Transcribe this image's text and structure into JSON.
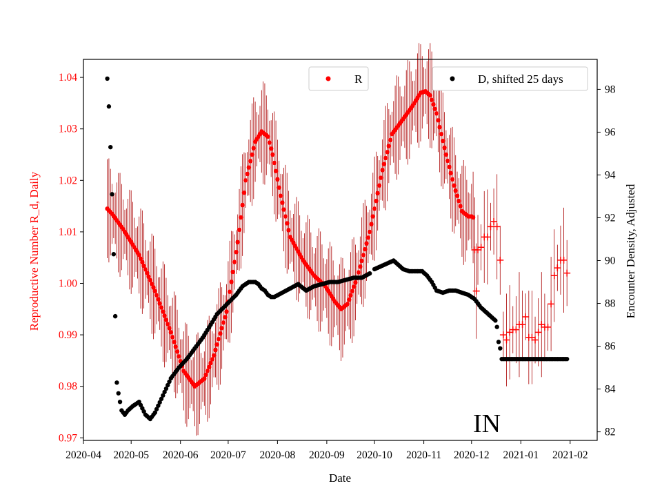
{
  "chart_data": {
    "type": "scatter",
    "title": "",
    "xlabel": "Date",
    "ylabel_left": "Reproductive Number R_d, Daily",
    "ylabel_right": "Encounter Density, Adjusted",
    "annotation": "IN",
    "x_start_date": "2020-04-01",
    "xlim_days": [
      0,
      323
    ],
    "ylim_left": [
      0.9695,
      1.0435
    ],
    "ylim_right": [
      81.6,
      99.4
    ],
    "x_ticks": [
      {
        "day": 0,
        "label": "2020-04"
      },
      {
        "day": 30,
        "label": "2020-05"
      },
      {
        "day": 61,
        "label": "2020-06"
      },
      {
        "day": 91,
        "label": "2020-07"
      },
      {
        "day": 122,
        "label": "2020-08"
      },
      {
        "day": 153,
        "label": "2020-09"
      },
      {
        "day": 183,
        "label": "2020-10"
      },
      {
        "day": 214,
        "label": "2020-11"
      },
      {
        "day": 244,
        "label": "2020-12"
      },
      {
        "day": 275,
        "label": "2021-01"
      },
      {
        "day": 306,
        "label": "2021-02"
      }
    ],
    "y_ticks_left": [
      {
        "value": 0.97,
        "label": "0.97"
      },
      {
        "value": 0.98,
        "label": "0.98"
      },
      {
        "value": 0.99,
        "label": "0.99"
      },
      {
        "value": 1.0,
        "label": "1.00"
      },
      {
        "value": 1.01,
        "label": "1.01"
      },
      {
        "value": 1.02,
        "label": "1.02"
      },
      {
        "value": 1.03,
        "label": "1.03"
      },
      {
        "value": 1.04,
        "label": "1.04"
      }
    ],
    "y_ticks_right": [
      {
        "value": 82,
        "label": "82"
      },
      {
        "value": 84,
        "label": "84"
      },
      {
        "value": 86,
        "label": "86"
      },
      {
        "value": 88,
        "label": "88"
      },
      {
        "value": 90,
        "label": "90"
      },
      {
        "value": 92,
        "label": "92"
      },
      {
        "value": 94,
        "label": "94"
      },
      {
        "value": 96,
        "label": "96"
      },
      {
        "value": 98,
        "label": "98"
      }
    ],
    "legend": [
      {
        "label": "R",
        "color": "#ff0000",
        "placement": "top-center"
      },
      {
        "label": "D, shifted 25 days",
        "color": "#000000",
        "placement": "top-right"
      }
    ],
    "series": [
      {
        "name": "R",
        "axis": "left",
        "color": "#ff0000",
        "errorbar_color": "#aa0000",
        "error_amplitude": 0.0085,
        "anchors_day": [
          15,
          18,
          25,
          35,
          45,
          55,
          63,
          70,
          76,
          82,
          90,
          97,
          102,
          108,
          112,
          116,
          119,
          124,
          130,
          138,
          145,
          152,
          158,
          162,
          166,
          172,
          180,
          188,
          194,
          200,
          207,
          212,
          215,
          218,
          222,
          228,
          233,
          238,
          242,
          244,
          245
        ],
        "anchors_value": [
          1.0145,
          1.0135,
          1.0105,
          1.0055,
          0.9985,
          0.9905,
          0.983,
          0.98,
          0.9815,
          0.986,
          0.9945,
          1.008,
          1.02,
          1.0275,
          1.0295,
          1.0285,
          1.025,
          1.017,
          1.009,
          1.0045,
          1.0015,
          0.9995,
          0.9965,
          0.995,
          0.996,
          1.001,
          1.01,
          1.022,
          1.029,
          1.0315,
          1.0345,
          1.037,
          1.0373,
          1.0365,
          1.033,
          1.025,
          1.019,
          1.014,
          1.013,
          1.013,
          1.0128
        ],
        "tail_markers": [
          [
            246,
            1.0065
          ],
          [
            247,
            0.9985
          ],
          [
            248,
            1.0065
          ],
          [
            250,
            1.007
          ],
          [
            252,
            1.009
          ],
          [
            254,
            1.009
          ],
          [
            256,
            1.011
          ],
          [
            258,
            1.012
          ],
          [
            260,
            1.011
          ],
          [
            262,
            1.0045
          ],
          [
            264,
            0.99
          ],
          [
            266,
            0.989
          ],
          [
            268,
            0.9905
          ],
          [
            270,
            0.991
          ],
          [
            272,
            0.991
          ],
          [
            274,
            0.992
          ],
          [
            276,
            0.992
          ],
          [
            278,
            0.9935
          ],
          [
            280,
            0.9895
          ],
          [
            282,
            0.9895
          ],
          [
            284,
            0.989
          ],
          [
            286,
            0.9905
          ],
          [
            288,
            0.992
          ],
          [
            290,
            0.9915
          ],
          [
            292,
            0.9915
          ],
          [
            294,
            0.996
          ],
          [
            296,
            1.0015
          ],
          [
            298,
            1.003
          ],
          [
            300,
            1.0045
          ],
          [
            302,
            1.0045
          ],
          [
            304,
            1.002
          ]
        ]
      },
      {
        "name": "D, shifted 25 days",
        "axis": "right",
        "color": "#000000",
        "anchors_day": [
          15,
          16,
          17,
          18,
          19,
          20,
          21,
          22,
          23,
          24,
          26,
          28,
          31,
          35,
          39,
          42,
          45,
          50,
          55,
          60,
          65,
          70,
          75,
          80,
          84,
          88,
          92,
          96,
          100,
          104,
          108,
          110,
          112,
          114,
          116,
          118,
          120,
          125,
          130,
          135,
          140,
          145,
          150,
          155,
          160,
          165,
          170,
          175,
          180
        ],
        "anchors_value": [
          98.5,
          97.2,
          95.3,
          93.1,
          90.3,
          87.4,
          84.3,
          83.8,
          83.4,
          83.0,
          82.8,
          83.0,
          83.2,
          83.4,
          82.8,
          82.6,
          82.9,
          83.7,
          84.5,
          85.0,
          85.4,
          85.9,
          86.4,
          87.0,
          87.5,
          87.8,
          88.1,
          88.4,
          88.8,
          89.0,
          89.0,
          88.9,
          88.7,
          88.6,
          88.4,
          88.3,
          88.3,
          88.5,
          88.7,
          88.9,
          88.6,
          88.8,
          88.9,
          89.0,
          89.0,
          89.1,
          89.2,
          89.2,
          89.4
        ],
        "segment2_day": [
          183,
          186,
          189,
          192,
          195,
          198,
          201,
          205,
          210,
          213,
          216,
          219,
          222,
          226,
          230,
          234,
          238,
          242,
          246,
          250,
          253,
          256,
          259,
          260,
          261,
          262
        ],
        "segment2_value": [
          89.6,
          89.7,
          89.8,
          89.9,
          90.0,
          89.8,
          89.6,
          89.5,
          89.5,
          89.5,
          89.3,
          89.0,
          88.6,
          88.5,
          88.6,
          88.6,
          88.5,
          88.4,
          88.2,
          87.8,
          87.6,
          87.4,
          87.2,
          86.9,
          86.2,
          85.9
        ],
        "flat_from_day": 263,
        "flat_to_day": 304,
        "flat_value": 85.4
      }
    ]
  }
}
